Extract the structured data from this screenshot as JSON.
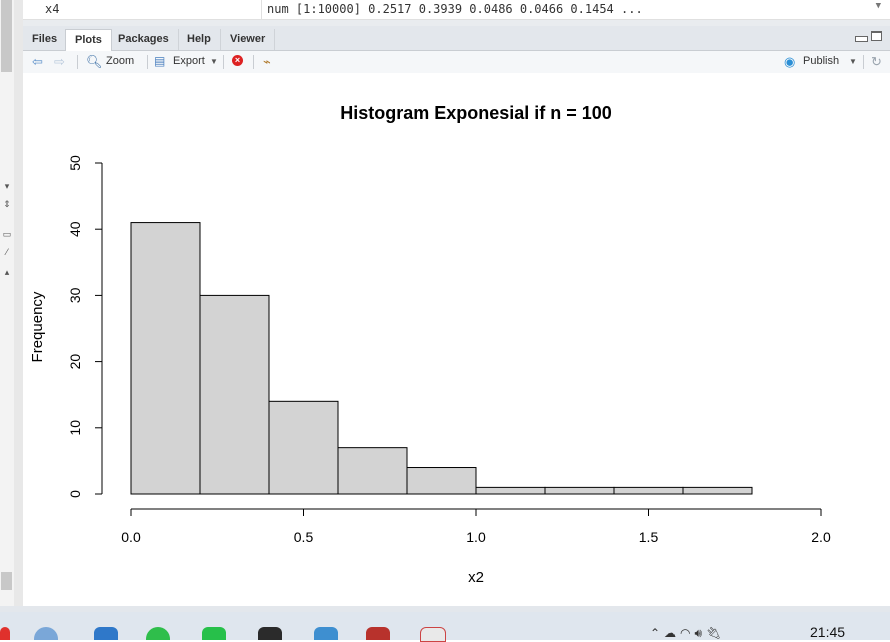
{
  "environment": {
    "name": "x4",
    "value": "num [1:10000] 0.2517 0.3939 0.0486 0.0466 0.1454 ..."
  },
  "tabs": [
    {
      "label": "Files",
      "active": false
    },
    {
      "label": "Plots",
      "active": true
    },
    {
      "label": "Packages",
      "active": false
    },
    {
      "label": "Help",
      "active": false
    },
    {
      "label": "Viewer",
      "active": false
    }
  ],
  "toolbar": {
    "zoom_label": "Zoom",
    "export_label": "Export",
    "publish_label": "Publish"
  },
  "taskbar": {
    "clock": "21:45"
  },
  "icons": {
    "back": "back-arrow-icon",
    "forward": "forward-arrow-icon",
    "zoom": "zoom-icon",
    "export": "export-icon",
    "remove": "remove-plot-icon",
    "clear": "broom-icon",
    "publish": "publish-icon",
    "refresh": "refresh-icon"
  },
  "chart_data": {
    "type": "bar",
    "title": "Histogram Exponesial if n = 100",
    "xlabel": "x2",
    "ylabel": "Frequency",
    "bin_edges": [
      0.0,
      0.2,
      0.4,
      0.6,
      0.8,
      1.0,
      1.2,
      1.4,
      1.6,
      1.8
    ],
    "values": [
      41,
      30,
      14,
      7,
      4,
      1,
      1,
      1,
      1
    ],
    "xlim": [
      0.0,
      2.0
    ],
    "ylim": [
      0,
      50
    ],
    "x_ticks": [
      "0.0",
      "0.5",
      "1.0",
      "1.5",
      "2.0"
    ],
    "y_ticks": [
      "0",
      "10",
      "20",
      "30",
      "40",
      "50"
    ],
    "bar_fill": "#d3d3d3",
    "bar_stroke": "#000000",
    "grid": false
  }
}
